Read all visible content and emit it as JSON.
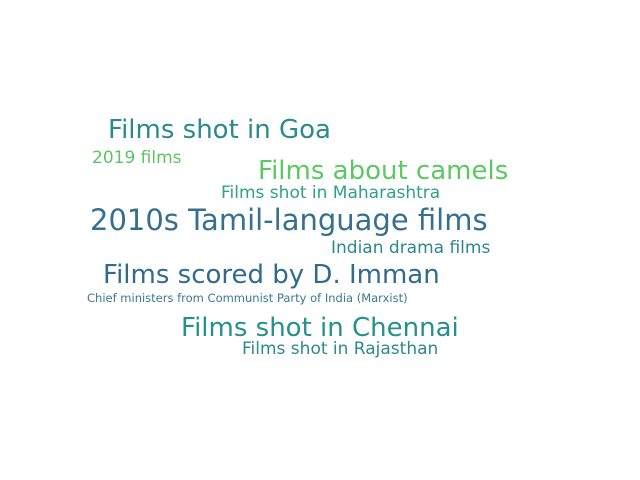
{
  "words": [
    {
      "text": "Films shot in Goa",
      "color": "#2a8a8e"
    },
    {
      "text": "2019 films",
      "color": "#5cc463"
    },
    {
      "text": "Films about camels",
      "color": "#5cc863"
    },
    {
      "text": "Films shot in Maharashtra",
      "color": "#2ea384"
    },
    {
      "text": "2010s Tamil-language films",
      "color": "#35708e"
    },
    {
      "text": "Indian drama films",
      "color": "#2d878e"
    },
    {
      "text": "Films scored by D. Imman",
      "color": "#306b8e"
    },
    {
      "text": "Chief ministers from Communist Party of India (Marxist)",
      "color": "#3a7b8d"
    },
    {
      "text": "Films shot in Chennai",
      "color": "#25918c"
    },
    {
      "text": "Films shot in Rajasthan",
      "color": "#2b8a8e"
    }
  ]
}
